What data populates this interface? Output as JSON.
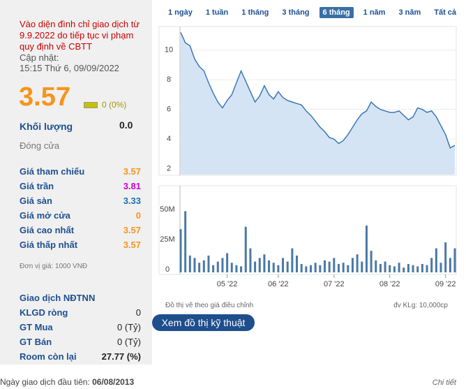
{
  "notice": "Vào diện đình chỉ giao dịch từ 9.9.2022 do tiếp tục vi phạm quy định về CBTT",
  "updated_label": "Cập nhật:",
  "updated_time": "15:15 Thứ 6, 09/09/2022",
  "price": "3.57",
  "change": "0 (0%)",
  "volume_label": "Khối lượng",
  "volume_value": "0.0",
  "status": "Đóng cửa",
  "stats": [
    {
      "label": "Giá tham chiếu",
      "value": "3.57",
      "color": "#f7941d"
    },
    {
      "label": "Giá trần",
      "value": "3.81",
      "color": "#d100d1"
    },
    {
      "label": "Giá sàn",
      "value": "3.33",
      "color": "#1f6fb5"
    },
    {
      "label": "Giá mở cửa",
      "value": "0",
      "color": "#f7941d"
    },
    {
      "label": "Giá cao nhất",
      "value": "3.57",
      "color": "#f7941d"
    },
    {
      "label": "Giá thấp nhất",
      "value": "3.57",
      "color": "#f7941d"
    }
  ],
  "unit_note": "Đơn vị giá: 1000 VNĐ",
  "foreign_title": "Giao dịch NĐTNN",
  "foreign": [
    {
      "label": "KLGD ròng",
      "value": "0"
    },
    {
      "label": "GT Mua",
      "value": "0 (Tỷ)"
    },
    {
      "label": "GT Bán",
      "value": "0 (Tỷ)"
    },
    {
      "label": "Room còn lại",
      "value": "27.77 (%)"
    }
  ],
  "ranges": [
    "1 ngày",
    "1 tuần",
    "1 tháng",
    "3 tháng",
    "6 tháng",
    "1 năm",
    "3 năm",
    "Tất cả"
  ],
  "active_range": 4,
  "dates": [
    null,
    null,
    null,
    null,
    null,
    null,
    null,
    null,
    null,
    null,
    "05 '22",
    null,
    null,
    null,
    null,
    null,
    null,
    null,
    null,
    null,
    null,
    "06 '22",
    null,
    null,
    null,
    null,
    null,
    null,
    null,
    null,
    null,
    null,
    null,
    "07 '22",
    null,
    null,
    null,
    null,
    null,
    null,
    null,
    null,
    null,
    null,
    null,
    "08 '22",
    null,
    null,
    null,
    null,
    null,
    null,
    null,
    null,
    null,
    null,
    null,
    "09 '22",
    null,
    null
  ],
  "price_chart": {
    "type": "area",
    "color": "#3a78b5",
    "ylim": [
      1.6,
      11.5
    ],
    "yticks": [
      2,
      4,
      6,
      8,
      10
    ],
    "grid": true,
    "values": [
      11.2,
      10.5,
      10.3,
      9.4,
      8.9,
      8.6,
      7.8,
      7.1,
      6.5,
      6.1,
      6.6,
      7.0,
      7.8,
      8.6,
      7.9,
      7.2,
      6.5,
      6.9,
      7.6,
      7.0,
      6.7,
      7.2,
      6.8,
      6.6,
      6.5,
      6.4,
      6.3,
      5.9,
      5.6,
      5.2,
      4.8,
      4.5,
      4.1,
      4.0,
      3.7,
      3.9,
      4.3,
      4.8,
      5.3,
      5.7,
      5.9,
      6.5,
      6.2,
      6.0,
      5.9,
      5.8,
      5.8,
      5.9,
      5.6,
      5.3,
      5.5,
      6.1,
      6.0,
      5.8,
      5.9,
      5.5,
      4.9,
      4.3,
      3.4,
      3.57
    ]
  },
  "volume_chart": {
    "type": "bar",
    "color": "#4a78a6",
    "ylim": [
      0,
      71000000
    ],
    "yticks": [
      {
        "value": 0,
        "label": "0"
      },
      {
        "value": 25000000,
        "label": "25M"
      },
      {
        "value": 50000000,
        "label": "50M"
      }
    ],
    "values": [
      36000000,
      51000000,
      14000000,
      12000000,
      8000000,
      10000000,
      14000000,
      6000000,
      9000000,
      12000000,
      16000000,
      8000000,
      6000000,
      5000000,
      38000000,
      20000000,
      9000000,
      12000000,
      15000000,
      10000000,
      8000000,
      6000000,
      12000000,
      9000000,
      20000000,
      14000000,
      7000000,
      5000000,
      6000000,
      8000000,
      6000000,
      10000000,
      9000000,
      12000000,
      7000000,
      8000000,
      6000000,
      12000000,
      15000000,
      9000000,
      39000000,
      18000000,
      10000000,
      7000000,
      9000000,
      6000000,
      5000000,
      8000000,
      4000000,
      7000000,
      6000000,
      5000000,
      7000000,
      6000000,
      12000000,
      20000000,
      8000000,
      25000000,
      12000000,
      20000000
    ]
  },
  "chart_note": "Đồ thị vẽ theo giá điều chỉnh",
  "volume_unit": "đv KLg: 10,000cp",
  "technical_button": "Xem đồ thị kỹ thuật",
  "first_trade_label": "Ngày giao dịch đầu tiên:",
  "first_trade_date": "06/08/2013",
  "details_link": "Chi tiết"
}
